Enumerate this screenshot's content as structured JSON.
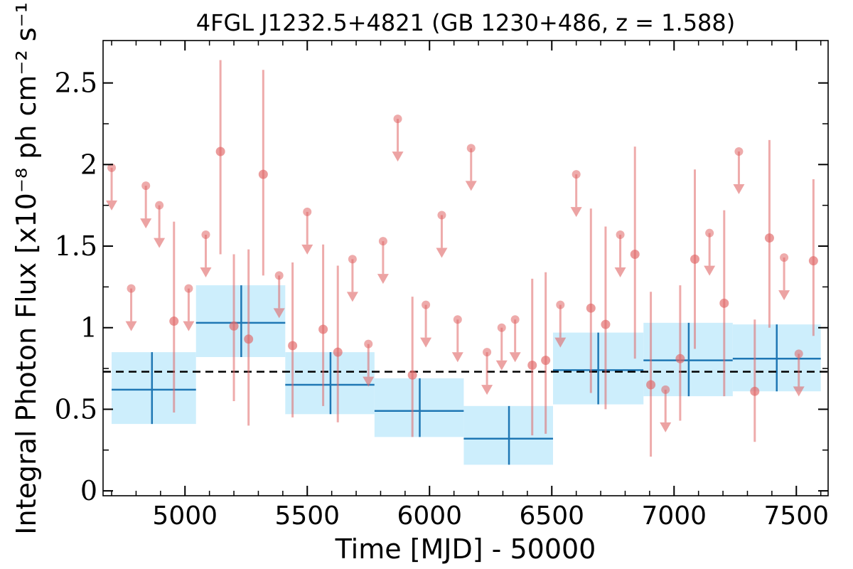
{
  "chart_data": {
    "type": "scatter",
    "title": "4FGL J1232.5+4821 (GB 1230+486, z = 1.588)",
    "xlabel": "Time [MJD] - 50000",
    "ylabel": "Integral Photon Flux [x10⁻⁸ ph cm⁻² s⁻¹]",
    "xlim": [
      4665,
      7630
    ],
    "ylim": [
      -0.03,
      2.76
    ],
    "x_ticks": [
      5000,
      5500,
      6000,
      6500,
      7000,
      7500
    ],
    "y_ticks": [
      0,
      0.5,
      1,
      1.5,
      2,
      2.5
    ],
    "x_tick_labels": [
      "5000",
      "5500",
      "6000",
      "6500",
      "7000",
      "7500"
    ],
    "y_tick_labels": [
      "0",
      "0.5",
      "1",
      "1.5",
      "2",
      "2.5"
    ],
    "reference_line": {
      "style": "dashed",
      "value": 0.73,
      "color": "#000000"
    },
    "colors": {
      "points": "#e06666",
      "bins": "#1f77b4",
      "bin_band": "#cdeefc"
    },
    "series": [
      {
        "kind": "points",
        "values": [
          {
            "x": 5145,
            "y": 2.08,
            "lo": 1.45,
            "hi": 2.64
          },
          {
            "x": 5320,
            "y": 1.94,
            "lo": 1.32,
            "hi": 2.58
          },
          {
            "x": 4955,
            "y": 1.04,
            "lo": 0.48,
            "hi": 1.65
          },
          {
            "x": 5200,
            "y": 1.01,
            "lo": 0.55,
            "hi": 1.45
          },
          {
            "x": 5260,
            "y": 0.93,
            "lo": 0.4,
            "hi": 1.48
          },
          {
            "x": 5440,
            "y": 0.89,
            "lo": 0.45,
            "hi": 1.4
          },
          {
            "x": 5565,
            "y": 0.99,
            "lo": 0.52,
            "hi": 1.51
          },
          {
            "x": 5625,
            "y": 0.85,
            "lo": 0.42,
            "hi": 1.38
          },
          {
            "x": 5930,
            "y": 0.71,
            "lo": 0.33,
            "hi": 1.19
          },
          {
            "x": 6420,
            "y": 0.77,
            "lo": 0.34,
            "hi": 1.3
          },
          {
            "x": 6475,
            "y": 0.8,
            "lo": 0.35,
            "hi": 1.34
          },
          {
            "x": 6660,
            "y": 1.12,
            "lo": 0.6,
            "hi": 1.73
          },
          {
            "x": 6720,
            "y": 1.02,
            "lo": 0.5,
            "hi": 1.62
          },
          {
            "x": 6840,
            "y": 1.45,
            "lo": 0.81,
            "hi": 2.11
          },
          {
            "x": 6905,
            "y": 0.65,
            "lo": 0.21,
            "hi": 1.22
          },
          {
            "x": 7025,
            "y": 0.81,
            "lo": 0.43,
            "hi": 1.26
          },
          {
            "x": 7085,
            "y": 1.42,
            "lo": 0.87,
            "hi": 1.97
          },
          {
            "x": 7205,
            "y": 1.15,
            "lo": 0.58,
            "hi": 1.72
          },
          {
            "x": 7330,
            "y": 0.61,
            "lo": 0.3,
            "hi": 1.05
          },
          {
            "x": 7390,
            "y": 1.55,
            "lo": 1.0,
            "hi": 2.15
          },
          {
            "x": 7570,
            "y": 1.41,
            "lo": 0.95,
            "hi": 1.91
          }
        ]
      },
      {
        "kind": "upper_limits",
        "values": [
          {
            "x": 4700,
            "y": 1.98
          },
          {
            "x": 4780,
            "y": 1.24
          },
          {
            "x": 4840,
            "y": 1.87
          },
          {
            "x": 4895,
            "y": 1.75
          },
          {
            "x": 5015,
            "y": 1.24
          },
          {
            "x": 5085,
            "y": 1.57
          },
          {
            "x": 5385,
            "y": 1.32
          },
          {
            "x": 5500,
            "y": 1.71
          },
          {
            "x": 5685,
            "y": 1.42
          },
          {
            "x": 5750,
            "y": 0.9
          },
          {
            "x": 5810,
            "y": 1.53
          },
          {
            "x": 5870,
            "y": 2.28
          },
          {
            "x": 5985,
            "y": 1.14
          },
          {
            "x": 6050,
            "y": 1.69
          },
          {
            "x": 6115,
            "y": 1.05
          },
          {
            "x": 6170,
            "y": 2.1
          },
          {
            "x": 6235,
            "y": 0.85
          },
          {
            "x": 6295,
            "y": 1.0
          },
          {
            "x": 6350,
            "y": 1.05
          },
          {
            "x": 6535,
            "y": 1.14
          },
          {
            "x": 6600,
            "y": 1.94
          },
          {
            "x": 6780,
            "y": 1.57
          },
          {
            "x": 6965,
            "y": 0.62
          },
          {
            "x": 7145,
            "y": 1.58
          },
          {
            "x": 7265,
            "y": 2.08
          },
          {
            "x": 7450,
            "y": 1.43
          },
          {
            "x": 7510,
            "y": 0.84
          }
        ]
      },
      {
        "kind": "bins",
        "values": [
          {
            "x0": 4700,
            "x1": 5045,
            "xc": 4865,
            "y": 0.62,
            "lo": 0.41,
            "hi": 0.85
          },
          {
            "x0": 5045,
            "x1": 5410,
            "xc": 5230,
            "y": 1.03,
            "lo": 0.82,
            "hi": 1.26
          },
          {
            "x0": 5410,
            "x1": 5775,
            "xc": 5595,
            "y": 0.65,
            "lo": 0.47,
            "hi": 0.85
          },
          {
            "x0": 5775,
            "x1": 6140,
            "xc": 5960,
            "y": 0.49,
            "lo": 0.33,
            "hi": 0.69
          },
          {
            "x0": 6140,
            "x1": 6505,
            "xc": 6325,
            "y": 0.32,
            "lo": 0.16,
            "hi": 0.52
          },
          {
            "x0": 6505,
            "x1": 6875,
            "xc": 6690,
            "y": 0.74,
            "lo": 0.53,
            "hi": 0.97
          },
          {
            "x0": 6875,
            "x1": 7240,
            "xc": 7060,
            "y": 0.8,
            "lo": 0.58,
            "hi": 1.03
          },
          {
            "x0": 7240,
            "x1": 7600,
            "xc": 7420,
            "y": 0.81,
            "lo": 0.61,
            "hi": 1.02
          }
        ]
      }
    ]
  }
}
